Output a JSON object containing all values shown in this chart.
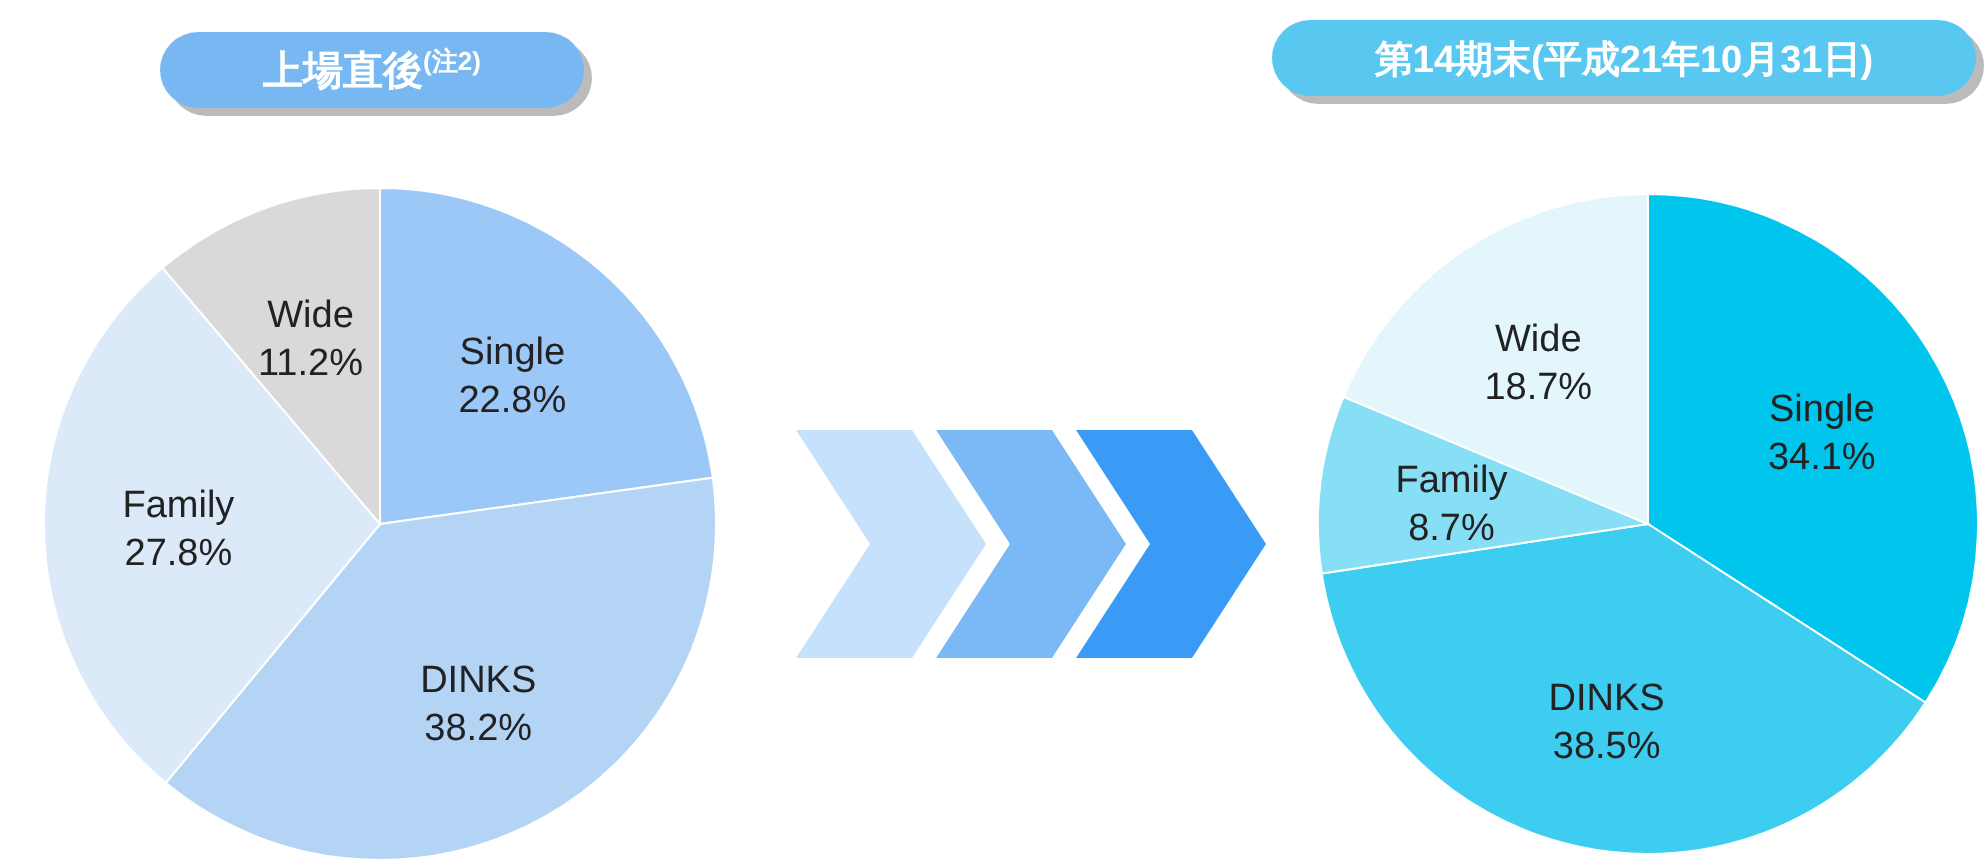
{
  "chart_data": [
    {
      "type": "pie",
      "title": "上場直後$^{(注2)}$",
      "categories": [
        "Single",
        "DINKS",
        "Family",
        "Wide"
      ],
      "values": [
        22.8,
        38.2,
        27.8,
        11.2
      ],
      "colors": [
        "#9cc8f8",
        "#b4d4f6",
        "#dce9f9",
        "#d9d9d9"
      ],
      "value_labels": [
        "22.8%",
        "38.2%",
        "27.8%",
        "11.2%"
      ]
    },
    {
      "type": "pie",
      "title": "第14期末(平成21年10月31日)",
      "categories": [
        "Single",
        "DINKS",
        "Family",
        "Wide"
      ],
      "values": [
        34.1,
        38.5,
        8.7,
        18.7
      ],
      "colors": [
        "#00c6ee",
        "#3ccdf0",
        "#86dff5",
        "#e2f6fc"
      ],
      "value_labels": [
        "34.1%",
        "38.5%",
        "8.7%",
        "18.7%"
      ]
    }
  ]
}
